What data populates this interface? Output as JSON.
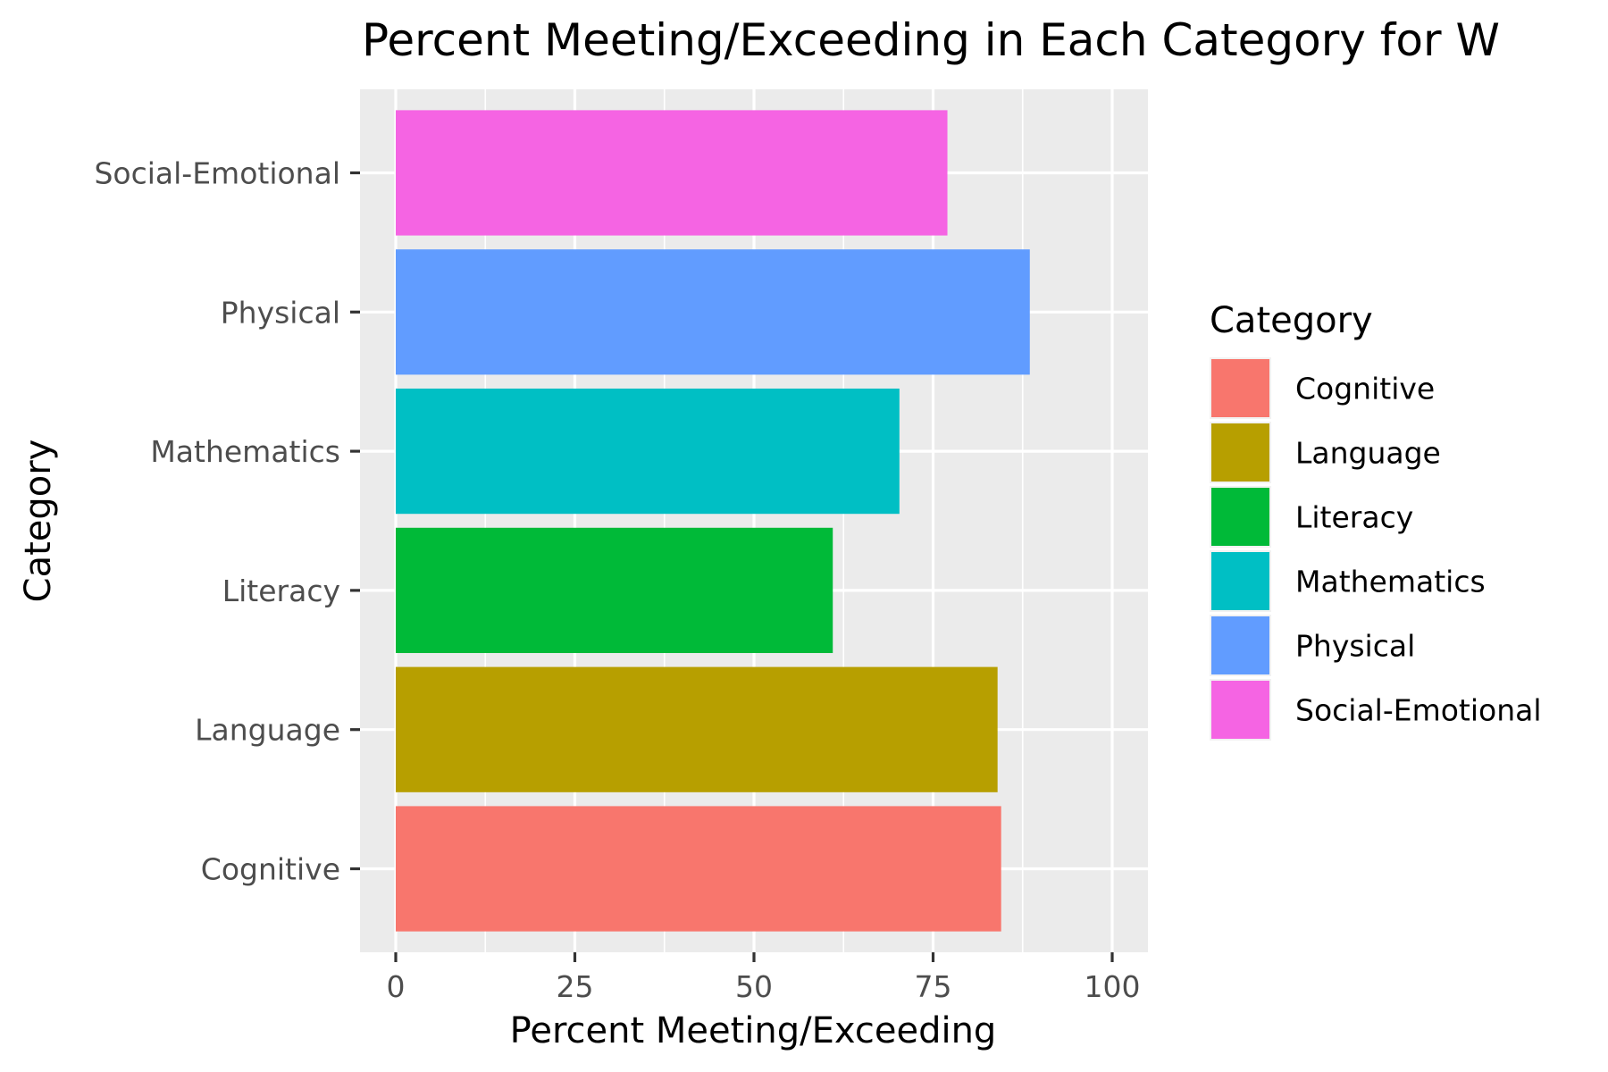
{
  "chart_data": {
    "type": "bar",
    "orientation": "horizontal",
    "title": "Percent Meeting/Exceeding in Each Category for W",
    "xlabel": "Percent Meeting/Exceeding",
    "ylabel": "Category",
    "xlim": [
      -5,
      105
    ],
    "xticks": [
      0,
      25,
      50,
      75,
      100
    ],
    "xtick_labels": [
      "0",
      "25",
      "50",
      "75",
      "100"
    ],
    "grid": true,
    "categories": [
      "Cognitive",
      "Language",
      "Literacy",
      "Mathematics",
      "Physical",
      "Social-Emotional"
    ],
    "values": [
      84.5,
      84.0,
      61.0,
      70.3,
      88.5,
      77.0
    ],
    "colors": [
      "#F8766D",
      "#B79F00",
      "#00BA38",
      "#00BFC4",
      "#619CFF",
      "#F564E3"
    ],
    "legend": {
      "title": "Category",
      "placement": "right",
      "entries": [
        "Cognitive",
        "Language",
        "Literacy",
        "Mathematics",
        "Physical",
        "Social-Emotional"
      ]
    },
    "panel_color": "#EBEBEB",
    "grid_color": "#FFFFFF"
  }
}
